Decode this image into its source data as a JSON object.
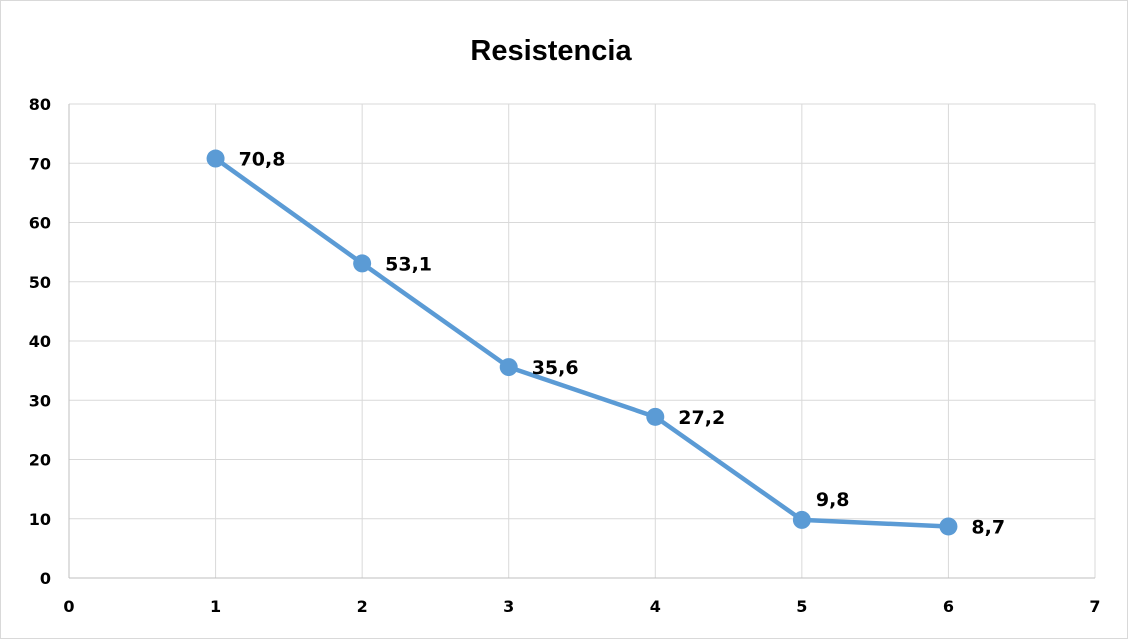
{
  "chart_data": {
    "type": "scatter",
    "title": "Resistencia",
    "xlabel": "",
    "ylabel": "",
    "xlim": [
      0,
      7
    ],
    "ylim": [
      0,
      80
    ],
    "x_ticks": [
      "0",
      "1",
      "2",
      "3",
      "4",
      "5",
      "6",
      "7"
    ],
    "y_ticks": [
      "0",
      "10",
      "20",
      "30",
      "40",
      "50",
      "60",
      "70",
      "80"
    ],
    "grid": true,
    "legend": "none",
    "series": [
      {
        "x": [
          1,
          2,
          3,
          4,
          5,
          6
        ],
        "y": [
          70.8,
          53.1,
          35.6,
          27.2,
          9.8,
          8.7
        ],
        "labels": [
          "70,8",
          "53,1",
          "35,6",
          "27,2",
          "9,8",
          "8,7"
        ],
        "color": "#5b9bd5"
      }
    ]
  }
}
